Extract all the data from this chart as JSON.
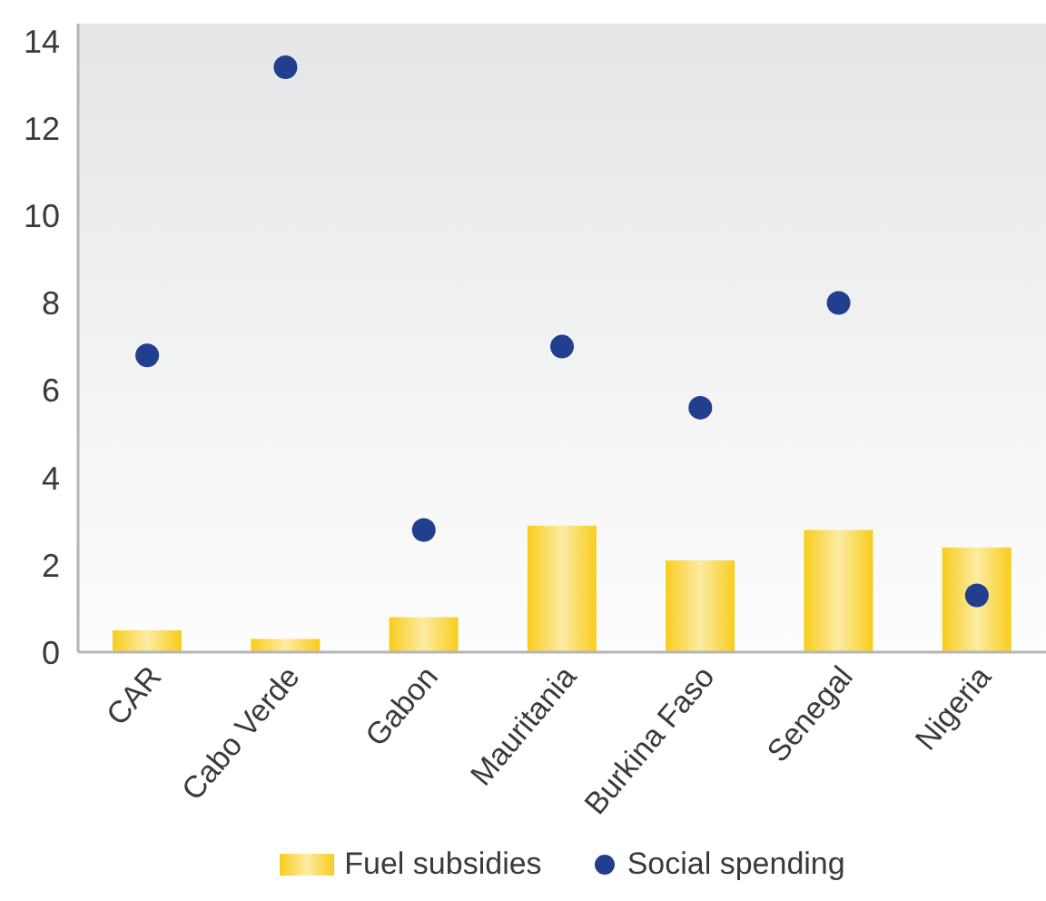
{
  "chart_data": {
    "type": "bar",
    "categories": [
      "CAR",
      "Cabo Verde",
      "Gabon",
      "Mauritania",
      "Burkina Faso",
      "Senegal",
      "Nigeria"
    ],
    "series": [
      {
        "name": "Fuel subsidies",
        "color": "#f8cd1c",
        "values": [
          0.5,
          0.3,
          0.8,
          2.9,
          2.1,
          2.8,
          2.4
        ]
      },
      {
        "name": "Social spending",
        "type": "scatter",
        "color": "#213f8e",
        "values": [
          6.8,
          13.4,
          2.8,
          7.0,
          5.6,
          8.0,
          1.3
        ]
      }
    ],
    "ylim": [
      0,
      14.4
    ],
    "yticks": [
      0,
      2,
      4,
      6,
      8,
      10,
      12,
      14
    ],
    "legend": "bottom",
    "marker": "circle"
  }
}
